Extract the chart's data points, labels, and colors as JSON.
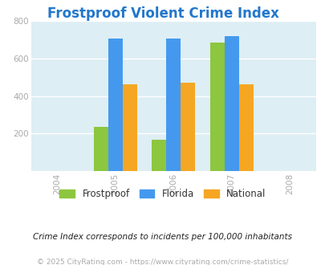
{
  "title": "Frostproof Violent Crime Index",
  "title_color": "#2277cc",
  "years": [
    2005,
    2006,
    2007
  ],
  "x_ticks": [
    2004,
    2005,
    2006,
    2007,
    2008
  ],
  "frostproof": [
    235,
    168,
    687
  ],
  "florida": [
    707,
    707,
    720
  ],
  "national": [
    462,
    472,
    462
  ],
  "frostproof_color": "#8dc63f",
  "florida_color": "#4499ee",
  "national_color": "#f5a623",
  "ylim": [
    0,
    800
  ],
  "yticks": [
    0,
    200,
    400,
    600,
    800
  ],
  "bg_color": "#ddeef4",
  "fig_bg": "#ffffff",
  "legend_labels": [
    "Frostproof",
    "Florida",
    "National"
  ],
  "footnote1": "Crime Index corresponds to incidents per 100,000 inhabitants",
  "footnote2": "© 2025 CityRating.com - https://www.cityrating.com/crime-statistics/",
  "bar_width": 0.25
}
